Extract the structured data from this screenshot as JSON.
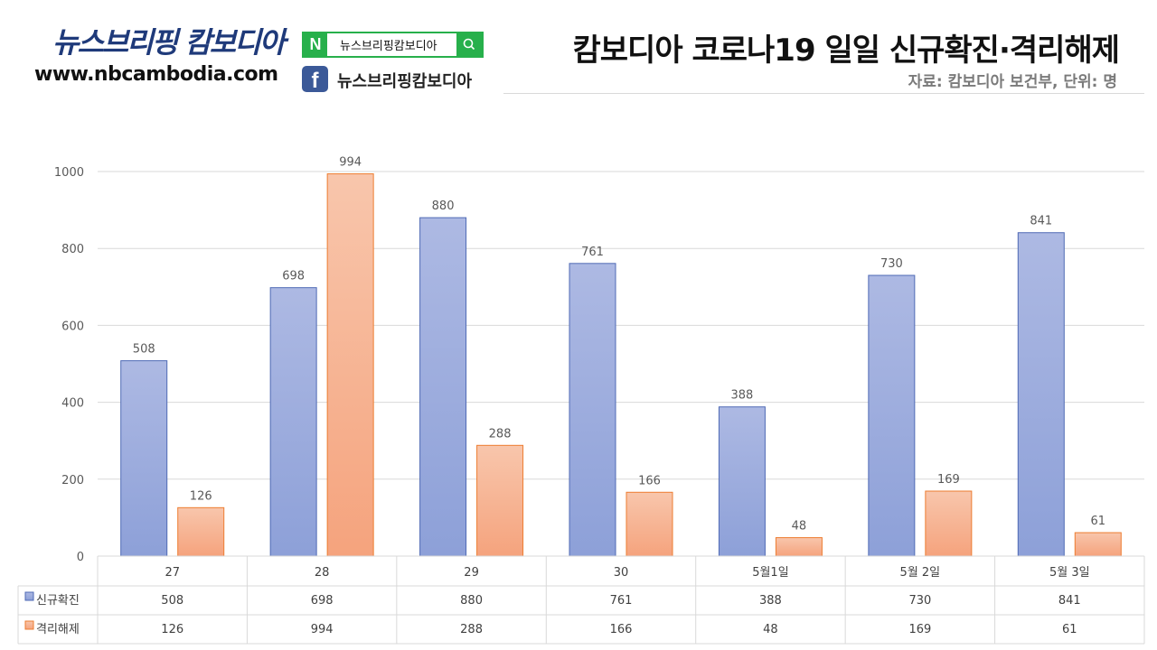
{
  "brand": {
    "name": "뉴스브리핑 캄보디아",
    "url": "www.nbcambodia.com",
    "naver_search_text": "뉴스브리핑캄보디아",
    "naver_icon": "N",
    "facebook_icon": "f",
    "facebook_text": "뉴스브리핑캄보디아"
  },
  "header": {
    "title": "캄보디아 코로나19 일일 신규확진·격리해제",
    "source": "자료: 캄보디아 보건부, 단위: 명"
  },
  "colors": {
    "series1_top": "#adb9e3",
    "series1_bottom": "#8da0d8",
    "series1_border": "#4f6ab5",
    "series2_top": "#f8c6ac",
    "series2_bottom": "#f5a37d",
    "series2_border": "#ed7d31",
    "naver_green": "#27b04b",
    "facebook_blue": "#3b5998"
  },
  "chart_data": {
    "type": "bar",
    "categories": [
      "27",
      "28",
      "29",
      "30",
      "5월1일",
      "5월 2일",
      "5월 3일"
    ],
    "series": [
      {
        "name": "신규확진",
        "values": [
          508,
          698,
          880,
          761,
          388,
          730,
          841
        ]
      },
      {
        "name": "격리해제",
        "values": [
          126,
          994,
          288,
          166,
          48,
          169,
          61
        ]
      }
    ],
    "ylim": [
      0,
      1000
    ],
    "yticks": [
      "0",
      "200",
      "400",
      "600",
      "800",
      "1000"
    ],
    "grid": true,
    "data_table": true
  }
}
